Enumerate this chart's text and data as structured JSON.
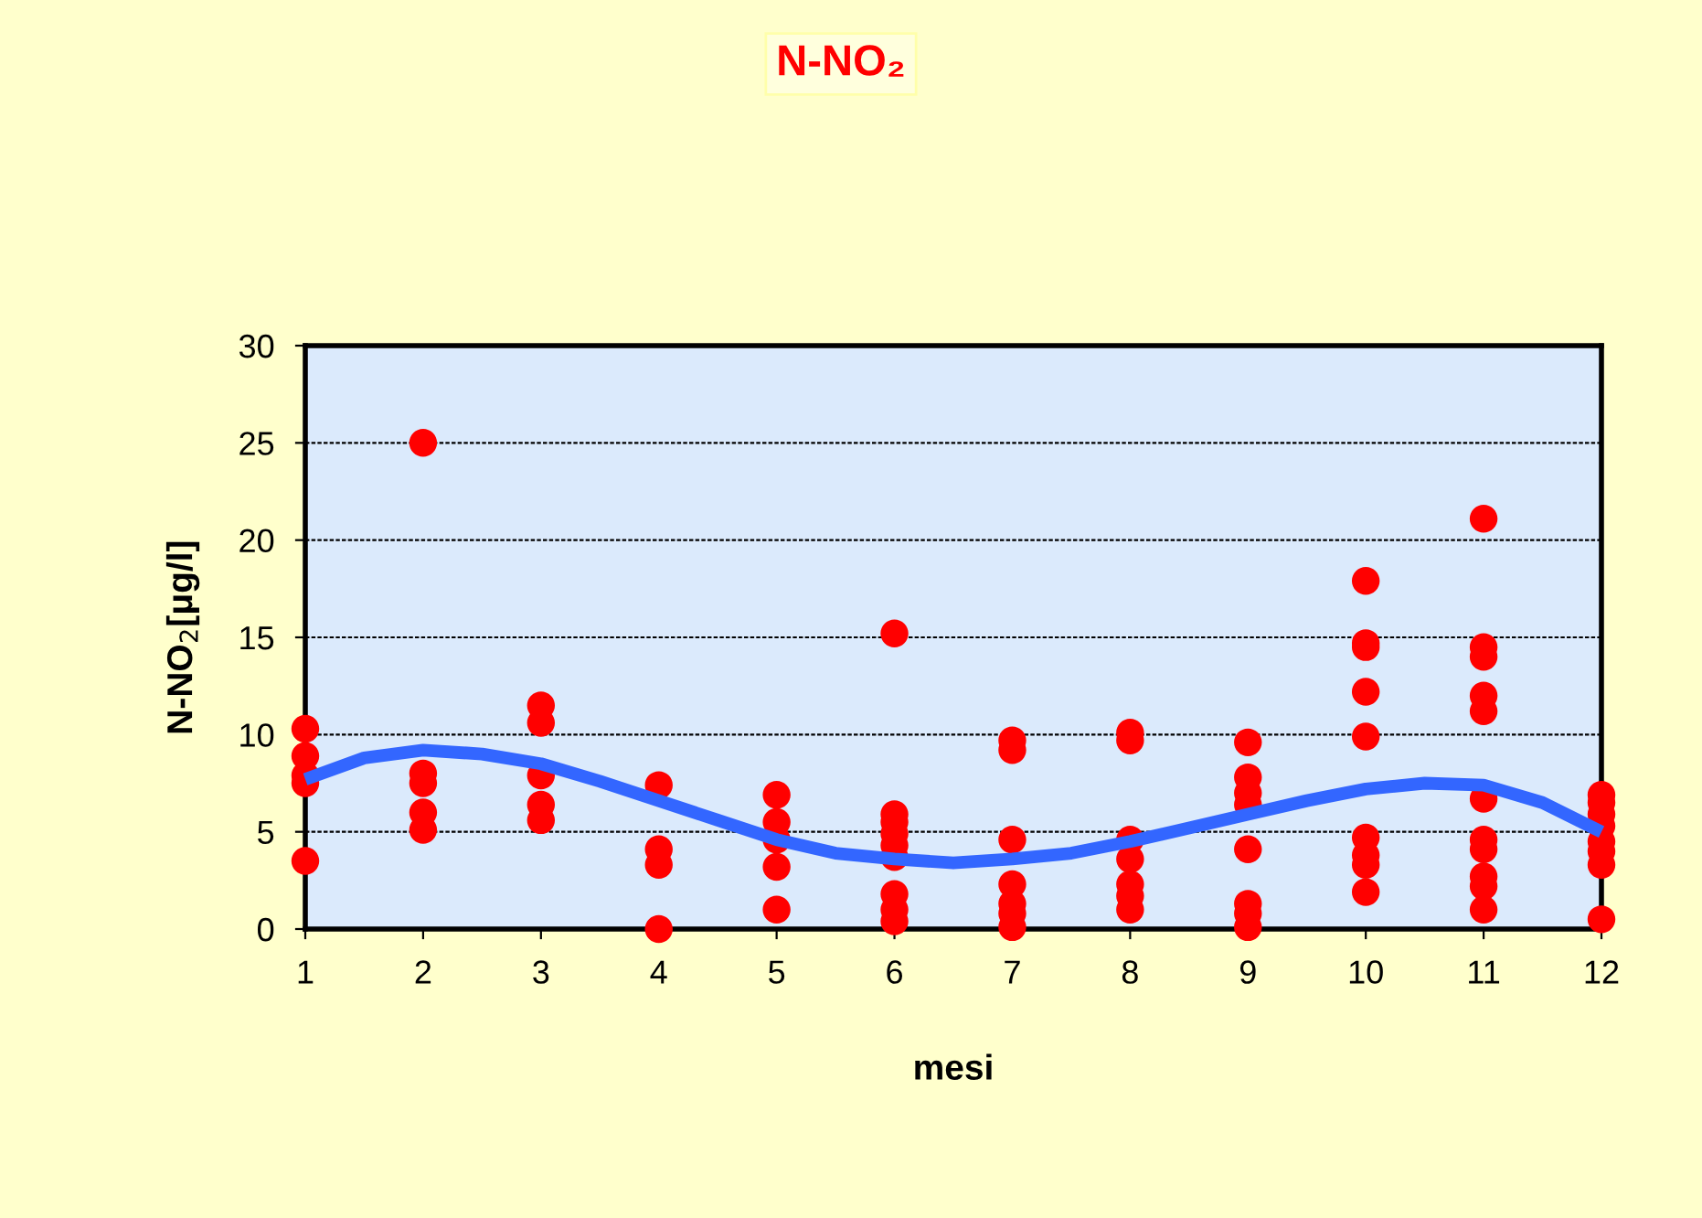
{
  "chart_data": {
    "type": "scatter",
    "title": "N-NO₂",
    "xlabel": "mesi",
    "ylabel": "N-NO$_{2}$[μg/l]",
    "xlim": [
      1,
      12
    ],
    "xticks": [
      1,
      2,
      3,
      4,
      5,
      6,
      7,
      8,
      9,
      10,
      11,
      12
    ],
    "ylim": [
      0,
      30
    ],
    "yticks": [
      0,
      5,
      10,
      15,
      20,
      25,
      30
    ],
    "grid": "y",
    "legend": false,
    "series": [
      {
        "color": "#ff0000",
        "marker": "circle",
        "x": [
          1,
          1,
          1,
          1,
          1,
          2,
          2,
          2,
          2,
          2,
          3,
          3,
          3,
          3,
          3,
          4,
          4,
          4,
          4,
          5,
          5,
          5,
          5,
          5,
          6,
          6,
          6,
          6,
          6,
          6,
          6,
          6,
          6,
          7,
          7,
          7,
          7,
          7,
          7,
          7,
          8,
          8,
          8,
          8,
          8,
          8,
          8,
          9,
          9,
          9,
          9,
          9,
          9,
          9,
          9,
          10,
          10,
          10,
          10,
          10,
          10,
          10,
          10,
          10,
          11,
          11,
          11,
          11,
          11,
          11,
          11,
          11,
          11,
          11,
          11,
          12,
          12,
          12,
          12,
          12,
          12,
          12,
          12
        ],
        "values": [
          10.3,
          8.9,
          7.9,
          7.5,
          3.5,
          25,
          8.0,
          7.5,
          6.0,
          5.1,
          11.5,
          10.6,
          7.9,
          6.4,
          5.6,
          7.4,
          4.1,
          3.3,
          0,
          6.9,
          5.5,
          4.6,
          3.2,
          1.0,
          15.2,
          5.9,
          5.5,
          4.9,
          4.3,
          3.7,
          1.8,
          1.0,
          0.4,
          9.7,
          9.2,
          4.6,
          2.3,
          1.3,
          0.8,
          0.1,
          10.1,
          9.7,
          4.6,
          3.6,
          2.3,
          1.7,
          1.0,
          9.6,
          7.8,
          7.0,
          6.4,
          4.1,
          1.3,
          0.8,
          0.1,
          17.9,
          14.7,
          14.5,
          12.2,
          9.9,
          4.7,
          3.8,
          3.3,
          1.9,
          21.1,
          14.5,
          14.0,
          12.0,
          11.2,
          6.7,
          4.6,
          4.1,
          2.7,
          2.2,
          1.0,
          6.9,
          6.5,
          5.9,
          5.3,
          4.5,
          4.0,
          3.3,
          0.5
        ]
      },
      {
        "type": "line",
        "color": "#3366ff",
        "marker": "none",
        "line_style": "solid",
        "x": [
          1,
          1.5,
          2,
          2.5,
          3,
          3.5,
          4,
          4.5,
          5,
          5.5,
          6,
          6.5,
          7,
          7.5,
          8,
          8.5,
          9,
          9.5,
          10,
          10.5,
          11,
          11.5,
          12
        ],
        "values": [
          7.7,
          8.8,
          9.2,
          9.0,
          8.5,
          7.6,
          6.6,
          5.6,
          4.6,
          3.9,
          3.6,
          3.4,
          3.6,
          3.9,
          4.5,
          5.2,
          5.9,
          6.6,
          7.2,
          7.5,
          7.4,
          6.5,
          5.0
        ]
      }
    ]
  }
}
